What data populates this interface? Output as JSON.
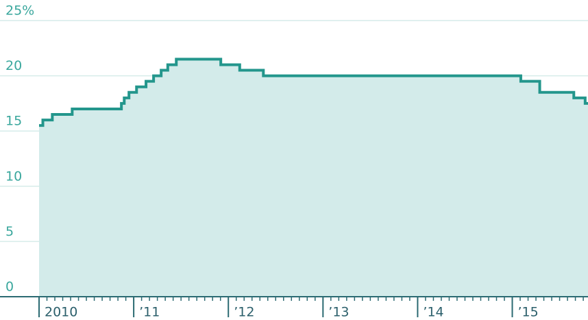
{
  "chart_data": {
    "type": "step-area",
    "x": [
      2010.0,
      2010.04,
      2010.14,
      2010.35,
      2010.87,
      2010.9,
      2010.95,
      2011.03,
      2011.13,
      2011.21,
      2011.29,
      2011.36,
      2011.45,
      2011.92,
      2012.12,
      2012.37,
      2015.09,
      2015.29,
      2015.65,
      2015.77
    ],
    "values": [
      15.5,
      16,
      16.5,
      17,
      17.5,
      18,
      18.5,
      19,
      19.5,
      20,
      20.5,
      21,
      21.5,
      21,
      20.5,
      20,
      19.5,
      18.5,
      18,
      17.5
    ],
    "color": "#23968c",
    "fill": "#d3ebea",
    "xlim": [
      2010,
      2015.8
    ],
    "xticks": [
      {
        "value": 2010,
        "label": "2010"
      },
      {
        "value": 2011,
        "label": "’11"
      },
      {
        "value": 2012,
        "label": "’12"
      },
      {
        "value": 2013,
        "label": "’13"
      },
      {
        "value": 2014,
        "label": "’14"
      },
      {
        "value": 2015,
        "label": "’15"
      }
    ],
    "ylim": [
      0,
      25
    ],
    "yticks": [
      0,
      5,
      10,
      15,
      20,
      {
        "value": 25,
        "label": "25%"
      }
    ],
    "grid": true
  }
}
